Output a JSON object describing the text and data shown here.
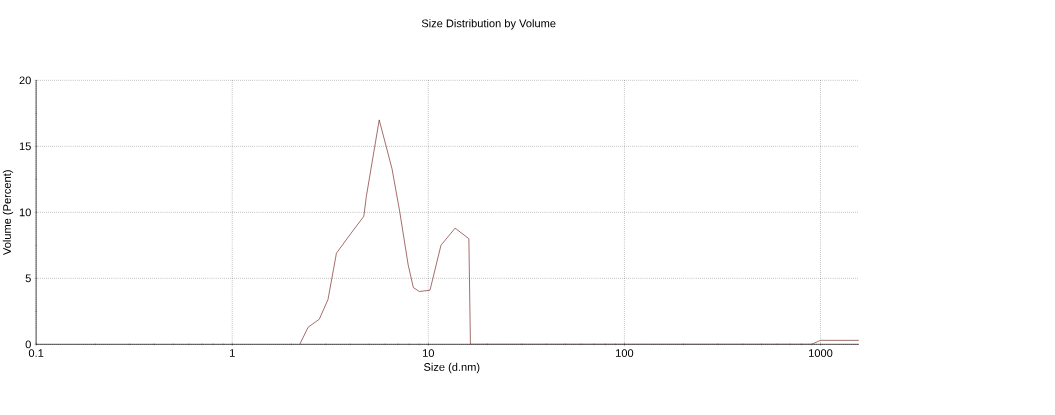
{
  "chart_data": {
    "type": "line",
    "title": "Size Distribution by Volume",
    "xlabel": "Size (d.nm)",
    "ylabel": "Volume (Percent)",
    "log": "x",
    "xlim": [
      0.1,
      1570
    ],
    "xticks": [
      0.1,
      1,
      10,
      100,
      1000
    ],
    "ylim": [
      0,
      20
    ],
    "yticks": [
      0,
      5,
      10,
      15,
      20
    ],
    "grid": true,
    "line_style": "solid",
    "marker": "none",
    "series": [
      {
        "color": "#7a2a2a",
        "x": [
          2.21,
          2.44,
          2.78,
          3.08,
          3.4,
          4.03,
          4.69,
          4.83,
          5.62,
          6.53,
          7.14,
          7.9,
          8.39,
          9.0,
          10.2,
          11.6,
          13.7,
          16.1,
          16.4,
          900,
          1000,
          1570
        ],
        "values": [
          0,
          1.3,
          1.9,
          3.4,
          6.9,
          8.4,
          9.7,
          11.2,
          17.0,
          13.3,
          10.1,
          6.0,
          4.3,
          4.0,
          4.1,
          7.5,
          8.8,
          8.0,
          0,
          0,
          0.3,
          0.3
        ]
      }
    ]
  }
}
